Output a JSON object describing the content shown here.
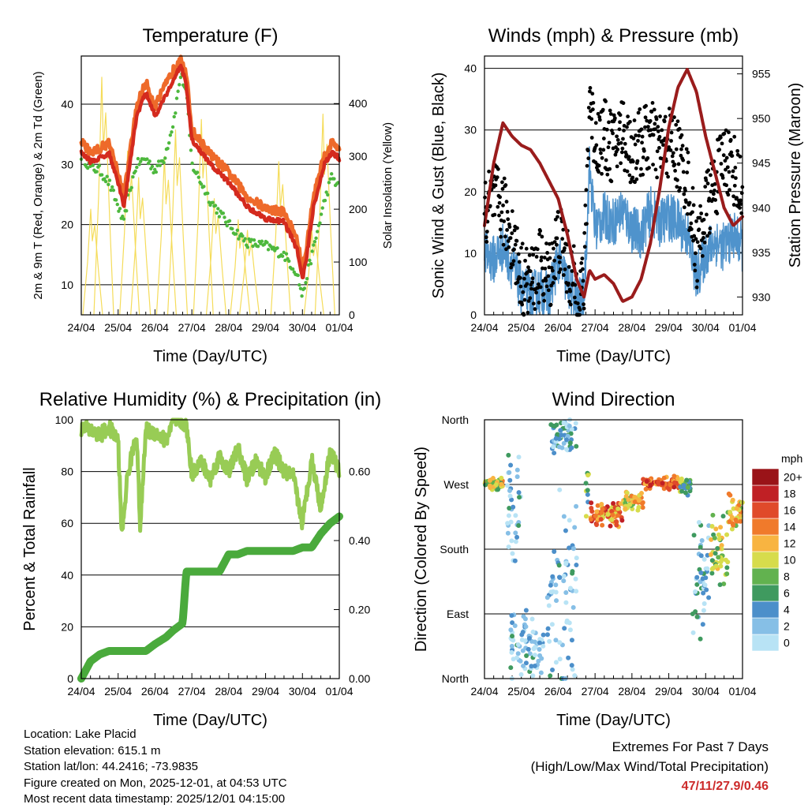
{
  "time_ticks": [
    "24/04",
    "25/04",
    "26/04",
    "27/04",
    "28/04",
    "29/04",
    "30/04",
    "01/04"
  ],
  "charts": {
    "temperature": {
      "title": "Temperature (F)",
      "xlabel": "Time (Day/UTC)",
      "ylabel_left": "2m & 9m T (Red, Orange) & 2m Td (Green)",
      "ylabel_right": "Solar Insolation (Yellow)",
      "left_ticks": [
        "10",
        "20",
        "30",
        "40"
      ],
      "right_ticks": [
        "0",
        "100",
        "200",
        "300",
        "400"
      ]
    },
    "winds": {
      "title": "Winds (mph) & Pressure (mb)",
      "xlabel": "Time (Day/UTC)",
      "ylabel_left": "Sonic Wind & Gust (Blue, Black)",
      "ylabel_right": "Station Pressure (Maroon)",
      "left_ticks": [
        "0",
        "10",
        "20",
        "30",
        "40"
      ],
      "right_ticks": [
        "930",
        "935",
        "940",
        "945",
        "950",
        "955"
      ]
    },
    "humidity": {
      "title": "Relative Humidity (%) & Precipitation (in)",
      "xlabel": "Time (Day/UTC)",
      "ylabel_left": "Percent & Total Rainfall",
      "left_ticks": [
        "0",
        "20",
        "40",
        "60",
        "80",
        "100"
      ],
      "right_ticks": [
        "0.00",
        "0.20",
        "0.40",
        "0.60"
      ]
    },
    "direction": {
      "title": "Wind Direction",
      "xlabel": "Time (Day/UTC)",
      "ylabel_left": "Direction (Colored By Speed)",
      "dir_ticks": [
        "North",
        "East",
        "South",
        "West",
        "North"
      ],
      "legend_title": "mph",
      "legend_labels": [
        "0",
        "2",
        "4",
        "6",
        "8",
        "10",
        "12",
        "14",
        "16",
        "18",
        "20+"
      ],
      "legend_colors": [
        "#b8e3f5",
        "#86bfe6",
        "#4c8fca",
        "#3f9a5f",
        "#62b24f",
        "#d7dc4c",
        "#f8b441",
        "#f07a2b",
        "#e04a2a",
        "#c02025",
        "#9a1318"
      ]
    }
  },
  "chart_data": [
    {
      "type": "line",
      "title": "Temperature (F)",
      "x": [
        0,
        0.25,
        0.5,
        0.75,
        1.0,
        1.15,
        1.25,
        1.5,
        1.75,
        2.0,
        2.25,
        2.5,
        2.7,
        2.85,
        3.0,
        3.5,
        4.0,
        4.5,
        5.0,
        5.5,
        5.85,
        6.0,
        6.1,
        6.3,
        6.6,
        6.8,
        7.0
      ],
      "series": [
        {
          "name": "2m T",
          "color": "#d42a1e",
          "values": [
            32,
            30.5,
            31,
            32,
            27,
            23,
            27,
            38,
            42,
            38,
            41,
            44,
            46.5,
            43,
            34,
            30,
            27,
            23,
            21,
            20.5,
            16,
            11,
            14,
            23,
            30,
            32,
            31
          ]
        },
        {
          "name": "2m Td",
          "color": "#4db83d",
          "values": [
            31.5,
            29.5,
            29,
            27,
            23,
            20,
            24,
            30,
            31,
            29,
            31,
            37,
            45,
            42,
            30,
            24,
            20,
            17,
            16.5,
            15,
            12,
            8,
            11,
            16,
            24,
            28,
            26
          ]
        },
        {
          "name": "Solar Insolation",
          "color": "#f5dc5a",
          "peaks": [
            {
              "x": 0.3,
              "value": 200
            },
            {
              "x": 0.6,
              "value": 450
            },
            {
              "x": 1.3,
              "value": 310
            },
            {
              "x": 1.6,
              "value": 260
            },
            {
              "x": 2.3,
              "value": 300
            },
            {
              "x": 2.6,
              "value": 350
            },
            {
              "x": 3.3,
              "value": 370
            },
            {
              "x": 3.65,
              "value": 220
            },
            {
              "x": 4.3,
              "value": 180
            },
            {
              "x": 4.55,
              "value": 160
            },
            {
              "x": 5.4,
              "value": 290
            },
            {
              "x": 6.3,
              "value": 160
            },
            {
              "x": 6.6,
              "value": 380
            }
          ]
        }
      ],
      "xlabel": "Time (Day/UTC)",
      "ylim": [
        5,
        48
      ],
      "y2lim": [
        0,
        490
      ]
    },
    {
      "type": "line",
      "title": "Winds (mph) & Pressure (mb)",
      "x": [
        0,
        0.25,
        0.5,
        0.75,
        1.0,
        1.25,
        1.5,
        1.75,
        2.0,
        2.25,
        2.5,
        2.7,
        2.85,
        3.0,
        3.25,
        3.5,
        3.75,
        4.0,
        4.25,
        4.5,
        4.75,
        5.0,
        5.25,
        5.5,
        5.75,
        6.0,
        6.25,
        6.5,
        6.75,
        7.0
      ],
      "series": [
        {
          "name": "Sonic Wind",
          "color": "#4f93cc",
          "values": [
            10,
            9,
            11,
            8,
            4,
            3,
            4,
            3,
            9,
            5,
            2,
            3,
            24,
            14,
            16,
            15,
            17,
            14,
            13,
            17,
            15,
            16,
            15,
            13,
            6,
            10,
            12,
            11,
            13,
            11
          ]
        },
        {
          "name": "Gust",
          "color": "#000000",
          "values": [
            16,
            19,
            17,
            13,
            6,
            5,
            8,
            6,
            13,
            8,
            4,
            5,
            36,
            28,
            29,
            27,
            30,
            26,
            28,
            29,
            27,
            28,
            26,
            22,
            10,
            17,
            21,
            26,
            24,
            19
          ]
        },
        {
          "name": "Station Pressure",
          "color": "#9a1c1c",
          "values": [
            938,
            945,
            949.5,
            948,
            947,
            946.5,
            945,
            943,
            941,
            937,
            932,
            930,
            933,
            932,
            932.5,
            931.5,
            929.5,
            930,
            932,
            936,
            942,
            949,
            953.5,
            955.5,
            953,
            948,
            944,
            940,
            938,
            939
          ]
        }
      ],
      "xlabel": "Time (Day/UTC)",
      "ylim": [
        0,
        42
      ],
      "y2lim": [
        928,
        957
      ]
    },
    {
      "type": "line",
      "title": "Relative Humidity (%) & Precipitation (in)",
      "x": [
        0,
        0.25,
        0.5,
        0.75,
        1.0,
        1.1,
        1.25,
        1.5,
        1.6,
        1.75,
        2.0,
        2.3,
        2.5,
        2.75,
        2.85,
        3.0,
        3.25,
        3.5,
        3.75,
        4.0,
        4.25,
        4.5,
        4.75,
        5.0,
        5.25,
        5.5,
        5.75,
        6.0,
        6.25,
        6.5,
        6.75,
        7.0
      ],
      "series": [
        {
          "name": "Relative Humidity",
          "color": "#98cc55",
          "values": [
            97,
            96,
            94,
            97,
            92,
            55,
            78,
            95,
            58,
            96,
            95,
            92,
            100,
            99,
            98,
            79,
            84,
            77,
            86,
            80,
            89,
            77,
            84,
            78,
            87,
            80,
            78,
            60,
            85,
            66,
            88,
            80
          ]
        },
        {
          "name": "Total Precipitation",
          "color": "#4aaa3c",
          "values": [
            0.0,
            0.05,
            0.07,
            0.08,
            0.08,
            0.08,
            0.08,
            0.08,
            0.08,
            0.08,
            0.1,
            0.12,
            0.14,
            0.16,
            0.31,
            0.31,
            0.31,
            0.31,
            0.31,
            0.36,
            0.36,
            0.37,
            0.37,
            0.37,
            0.37,
            0.37,
            0.37,
            0.38,
            0.38,
            0.42,
            0.45,
            0.47
          ]
        }
      ],
      "xlabel": "Time (Day/UTC)",
      "ylim": [
        0,
        100
      ],
      "y2lim": [
        0,
        0.75
      ]
    },
    {
      "type": "scatter",
      "title": "Wind Direction",
      "ylabel": "Direction (Colored By Speed)",
      "xlabel": "Time (Day/UTC)",
      "ylim": [
        0,
        360
      ],
      "groups": [
        {
          "x0": 0.0,
          "x1": 0.5,
          "dir": 270,
          "spread": 10,
          "speed": 11
        },
        {
          "x0": 0.6,
          "x1": 1.0,
          "dir": 240,
          "spread": 90,
          "speed": 3
        },
        {
          "x0": 0.7,
          "x1": 1.6,
          "dir": 40,
          "spread": 60,
          "speed": 3
        },
        {
          "x0": 1.7,
          "x1": 2.5,
          "dir": 100,
          "spread": 180,
          "speed": 3
        },
        {
          "x0": 1.8,
          "x1": 2.5,
          "dir": 340,
          "spread": 30,
          "speed": 4
        },
        {
          "x0": 2.75,
          "x1": 2.85,
          "dir": 260,
          "spread": 40,
          "speed": 8
        },
        {
          "x0": 2.85,
          "x1": 3.75,
          "dir": 230,
          "spread": 20,
          "speed": 15
        },
        {
          "x0": 3.75,
          "x1": 4.3,
          "dir": 245,
          "spread": 15,
          "speed": 12
        },
        {
          "x0": 4.3,
          "x1": 5.3,
          "dir": 272,
          "spread": 10,
          "speed": 16
        },
        {
          "x0": 5.3,
          "x1": 5.6,
          "dir": 268,
          "spread": 20,
          "speed": 8
        },
        {
          "x0": 5.6,
          "x1": 6.1,
          "dir": 140,
          "spread": 100,
          "speed": 4
        },
        {
          "x0": 6.1,
          "x1": 6.6,
          "dir": 180,
          "spread": 50,
          "speed": 10
        },
        {
          "x0": 6.6,
          "x1": 7.0,
          "dir": 230,
          "spread": 30,
          "speed": 12
        }
      ]
    }
  ],
  "footer": {
    "location": "Location: Lake Placid",
    "elevation": "Station elevation: 615.1 m",
    "latlon": "Station lat/lon: 44.2416; -73.9835",
    "created": "Figure created on Mon, 2025-12-01, at 04:53 UTC",
    "recent": "Most recent data timestamp: 2025/12/01 04:15:00",
    "extremes_title": "Extremes For Past 7 Days",
    "extremes_sub": "(High/Low/Max Wind/Total Precipitation)",
    "extremes_values": "47/11/27.9/0.46"
  }
}
